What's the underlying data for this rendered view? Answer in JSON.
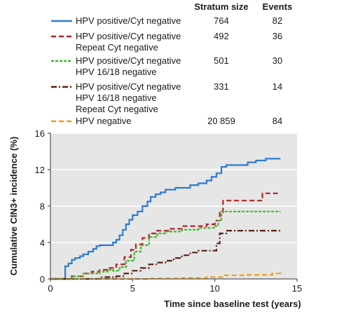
{
  "chart_data": {
    "type": "line",
    "title": "",
    "xlabel": "Time since baseline test (years)",
    "ylabel": "Cumulative CIN3+ incidence (%)",
    "xlim": [
      0,
      15
    ],
    "ylim": [
      0,
      16
    ],
    "xticks": [
      0,
      5,
      10,
      15
    ],
    "yticks": [
      0,
      4,
      8,
      12,
      16
    ],
    "grid": "horizontal",
    "legend_position": "top",
    "table_headers": {
      "stratum": "Stratum size",
      "events": "Events"
    },
    "series": [
      {
        "name": "HPV positive/Cyt negative",
        "stratum_size": "764",
        "events": "82",
        "color": "#2e7bcf",
        "dash": "solid",
        "points": [
          [
            0,
            0
          ],
          [
            0.7,
            0
          ],
          [
            0.9,
            1.4
          ],
          [
            1.1,
            1.7
          ],
          [
            1.3,
            2.1
          ],
          [
            1.5,
            2.3
          ],
          [
            1.8,
            2.5
          ],
          [
            2.0,
            2.7
          ],
          [
            2.3,
            3.0
          ],
          [
            2.6,
            3.3
          ],
          [
            2.8,
            3.6
          ],
          [
            3.0,
            3.7
          ],
          [
            3.5,
            3.7
          ],
          [
            3.8,
            4.0
          ],
          [
            4.0,
            4.3
          ],
          [
            4.2,
            4.8
          ],
          [
            4.4,
            5.4
          ],
          [
            4.6,
            6.0
          ],
          [
            4.8,
            6.5
          ],
          [
            5.0,
            7.0
          ],
          [
            5.3,
            7.4
          ],
          [
            5.6,
            8.0
          ],
          [
            5.9,
            8.5
          ],
          [
            6.1,
            9.0
          ],
          [
            6.4,
            9.3
          ],
          [
            6.7,
            9.5
          ],
          [
            7.0,
            9.8
          ],
          [
            7.3,
            9.8
          ],
          [
            7.6,
            10.0
          ],
          [
            8.2,
            10.0
          ],
          [
            8.5,
            10.3
          ],
          [
            9.0,
            10.5
          ],
          [
            9.5,
            10.8
          ],
          [
            9.8,
            11.2
          ],
          [
            10.1,
            11.6
          ],
          [
            10.4,
            12.3
          ],
          [
            10.7,
            12.5
          ],
          [
            11.5,
            12.5
          ],
          [
            12.0,
            12.8
          ],
          [
            12.5,
            13.0
          ],
          [
            13.1,
            13.2
          ],
          [
            14.0,
            13.2
          ]
        ]
      },
      {
        "name": "HPV positive/Cyt negative Repeat Cyt negative",
        "stratum_size": "492",
        "events": "36",
        "color": "#b22222",
        "dash": "long",
        "points": [
          [
            0,
            0
          ],
          [
            1.0,
            0
          ],
          [
            1.2,
            0.3
          ],
          [
            2.0,
            0.6
          ],
          [
            2.5,
            0.8
          ],
          [
            3.0,
            1.0
          ],
          [
            3.5,
            1.2
          ],
          [
            4.0,
            1.6
          ],
          [
            4.5,
            2.4
          ],
          [
            4.9,
            3.2
          ],
          [
            5.2,
            3.8
          ],
          [
            5.6,
            4.5
          ],
          [
            6.0,
            5.0
          ],
          [
            6.5,
            5.3
          ],
          [
            7.2,
            5.5
          ],
          [
            8.0,
            5.8
          ],
          [
            9.0,
            5.8
          ],
          [
            9.5,
            6.0
          ],
          [
            10.0,
            6.4
          ],
          [
            10.3,
            7.3
          ],
          [
            10.5,
            8.6
          ],
          [
            11.0,
            8.6
          ],
          [
            12.8,
            8.6
          ],
          [
            12.9,
            9.4
          ],
          [
            14.0,
            9.4
          ]
        ]
      },
      {
        "name": "HPV positive/Cyt negative HPV 16/18 negative",
        "stratum_size": "501",
        "events": "30",
        "color": "#3cb82b",
        "dash": "short",
        "points": [
          [
            0,
            0
          ],
          [
            1.1,
            0
          ],
          [
            1.3,
            0.3
          ],
          [
            2.0,
            0.6
          ],
          [
            2.6,
            0.6
          ],
          [
            3.0,
            0.8
          ],
          [
            3.5,
            1.0
          ],
          [
            3.8,
            0.9
          ],
          [
            4.2,
            1.3
          ],
          [
            4.6,
            2.0
          ],
          [
            5.1,
            3.0
          ],
          [
            5.5,
            3.7
          ],
          [
            6.0,
            4.6
          ],
          [
            6.5,
            5.0
          ],
          [
            7.0,
            5.2
          ],
          [
            8.0,
            5.4
          ],
          [
            9.0,
            5.6
          ],
          [
            10.0,
            5.8
          ],
          [
            10.2,
            6.4
          ],
          [
            10.4,
            7.4
          ],
          [
            10.8,
            7.4
          ],
          [
            14.0,
            7.4
          ]
        ]
      },
      {
        "name": "HPV positive/Cyt negative HPV 16/18 negative Repeat Cyt negative",
        "stratum_size": "331",
        "events": "14",
        "color": "#5a1e14",
        "dash": "dashdot",
        "points": [
          [
            0,
            0
          ],
          [
            2.8,
            0
          ],
          [
            3.0,
            0.2
          ],
          [
            4.0,
            0.3
          ],
          [
            4.5,
            0.6
          ],
          [
            5.0,
            0.9
          ],
          [
            5.5,
            1.2
          ],
          [
            6.0,
            1.6
          ],
          [
            6.5,
            1.8
          ],
          [
            7.0,
            2.0
          ],
          [
            7.5,
            2.3
          ],
          [
            8.0,
            2.6
          ],
          [
            8.5,
            2.9
          ],
          [
            9.0,
            3.1
          ],
          [
            9.8,
            3.1
          ],
          [
            10.1,
            3.9
          ],
          [
            10.3,
            5.0
          ],
          [
            10.7,
            5.3
          ],
          [
            14.0,
            5.3
          ]
        ]
      },
      {
        "name": "HPV negative",
        "stratum_size": "20 859",
        "events": "84",
        "color": "#e8a020",
        "dash": "long",
        "points": [
          [
            0,
            0
          ],
          [
            3.0,
            0
          ],
          [
            6.0,
            0.05
          ],
          [
            8.0,
            0.1
          ],
          [
            9.5,
            0.2
          ],
          [
            10.5,
            0.4
          ],
          [
            12.0,
            0.45
          ],
          [
            13.5,
            0.6
          ],
          [
            14.0,
            0.55
          ]
        ]
      }
    ]
  },
  "legend_lines": [
    [
      "HPV positive/Cyt negative"
    ],
    [
      "HPV positive/Cyt negative",
      "Repeat Cyt negative"
    ],
    [
      "HPV positive/Cyt negative",
      "HPV 16/18 negative"
    ],
    [
      "HPV positive/Cyt negative",
      "HPV 16/18 negative",
      "Repeat Cyt negative"
    ],
    [
      "HPV negative"
    ]
  ]
}
